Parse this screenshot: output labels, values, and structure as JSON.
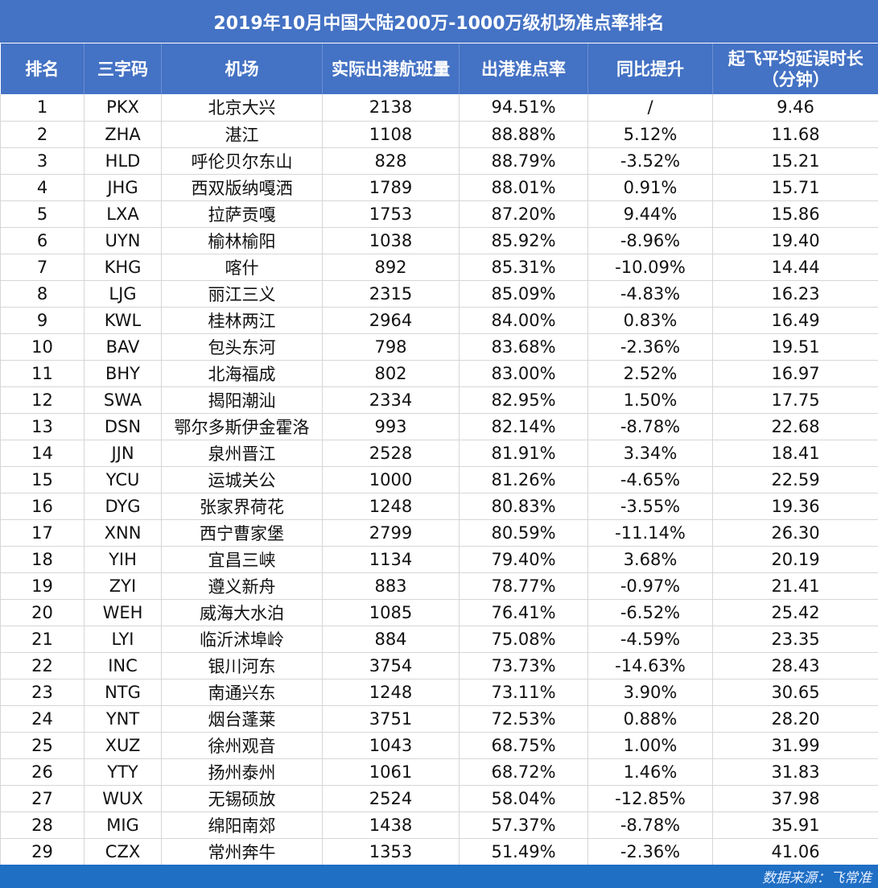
{
  "title": "2019年10月中国大陆200万-1000万级机场准点率排名",
  "headers": [
    "排名",
    "三字码",
    "机场",
    "实际出港航班量",
    "出港准点率",
    "同比提升",
    "起飞平均延误时长（分钟）"
  ],
  "header_last_line1": "起飞平均延误时长",
  "header_last_line2": "（分钟）",
  "rows": [
    [
      "1",
      "PKX",
      "北京大兴",
      "2138",
      "94.51%",
      "/",
      "9.46"
    ],
    [
      "2",
      "ZHA",
      "湛江",
      "1108",
      "88.88%",
      "5.12%",
      "11.68"
    ],
    [
      "3",
      "HLD",
      "呼伦贝尔东山",
      "828",
      "88.79%",
      "-3.52%",
      "15.21"
    ],
    [
      "4",
      "JHG",
      "西双版纳嘎洒",
      "1789",
      "88.01%",
      "0.91%",
      "15.71"
    ],
    [
      "5",
      "LXA",
      "拉萨贡嘎",
      "1753",
      "87.20%",
      "9.44%",
      "15.86"
    ],
    [
      "6",
      "UYN",
      "榆林榆阳",
      "1038",
      "85.92%",
      "-8.96%",
      "19.40"
    ],
    [
      "7",
      "KHG",
      "喀什",
      "892",
      "85.31%",
      "-10.09%",
      "14.44"
    ],
    [
      "8",
      "LJG",
      "丽江三义",
      "2315",
      "85.09%",
      "-4.83%",
      "16.23"
    ],
    [
      "9",
      "KWL",
      "桂林两江",
      "2964",
      "84.00%",
      "0.83%",
      "16.49"
    ],
    [
      "10",
      "BAV",
      "包头东河",
      "798",
      "83.68%",
      "-2.36%",
      "19.51"
    ],
    [
      "11",
      "BHY",
      "北海福成",
      "802",
      "83.00%",
      "2.52%",
      "16.97"
    ],
    [
      "12",
      "SWA",
      "揭阳潮汕",
      "2334",
      "82.95%",
      "1.50%",
      "17.75"
    ],
    [
      "13",
      "DSN",
      "鄂尔多斯伊金霍洛",
      "993",
      "82.14%",
      "-8.78%",
      "22.68"
    ],
    [
      "14",
      "JJN",
      "泉州晋江",
      "2528",
      "81.91%",
      "3.34%",
      "18.41"
    ],
    [
      "15",
      "YCU",
      "运城关公",
      "1000",
      "81.26%",
      "-4.65%",
      "22.59"
    ],
    [
      "16",
      "DYG",
      "张家界荷花",
      "1248",
      "80.83%",
      "-3.55%",
      "19.36"
    ],
    [
      "17",
      "XNN",
      "西宁曹家堡",
      "2799",
      "80.59%",
      "-11.14%",
      "26.30"
    ],
    [
      "18",
      "YIH",
      "宜昌三峡",
      "1134",
      "79.40%",
      "3.68%",
      "20.19"
    ],
    [
      "19",
      "ZYI",
      "遵义新舟",
      "883",
      "78.77%",
      "-0.97%",
      "21.41"
    ],
    [
      "20",
      "WEH",
      "威海大水泊",
      "1085",
      "76.41%",
      "-6.52%",
      "25.42"
    ],
    [
      "21",
      "LYI",
      "临沂沭埠岭",
      "884",
      "75.08%",
      "-4.59%",
      "23.35"
    ],
    [
      "22",
      "INC",
      "银川河东",
      "3754",
      "73.73%",
      "-14.63%",
      "28.43"
    ],
    [
      "23",
      "NTG",
      "南通兴东",
      "1248",
      "73.11%",
      "3.90%",
      "30.65"
    ],
    [
      "24",
      "YNT",
      "烟台蓬莱",
      "3751",
      "72.53%",
      "0.88%",
      "28.20"
    ],
    [
      "25",
      "XUZ",
      "徐州观音",
      "1043",
      "68.75%",
      "1.00%",
      "31.99"
    ],
    [
      "26",
      "YTY",
      "扬州泰州",
      "1061",
      "68.72%",
      "1.46%",
      "31.83"
    ],
    [
      "27",
      "WUX",
      "无锡硕放",
      "2524",
      "58.04%",
      "-12.85%",
      "37.98"
    ],
    [
      "28",
      "MIG",
      "绵阳南郊",
      "1438",
      "57.37%",
      "-8.78%",
      "35.91"
    ],
    [
      "29",
      "CZX",
      "常州奔牛",
      "1353",
      "51.49%",
      "-2.36%",
      "41.06"
    ]
  ],
  "footer": "数据来源：飞常准",
  "colors": {
    "header_bg": "#4472c4",
    "footer_bg": "#1f6fc5"
  }
}
